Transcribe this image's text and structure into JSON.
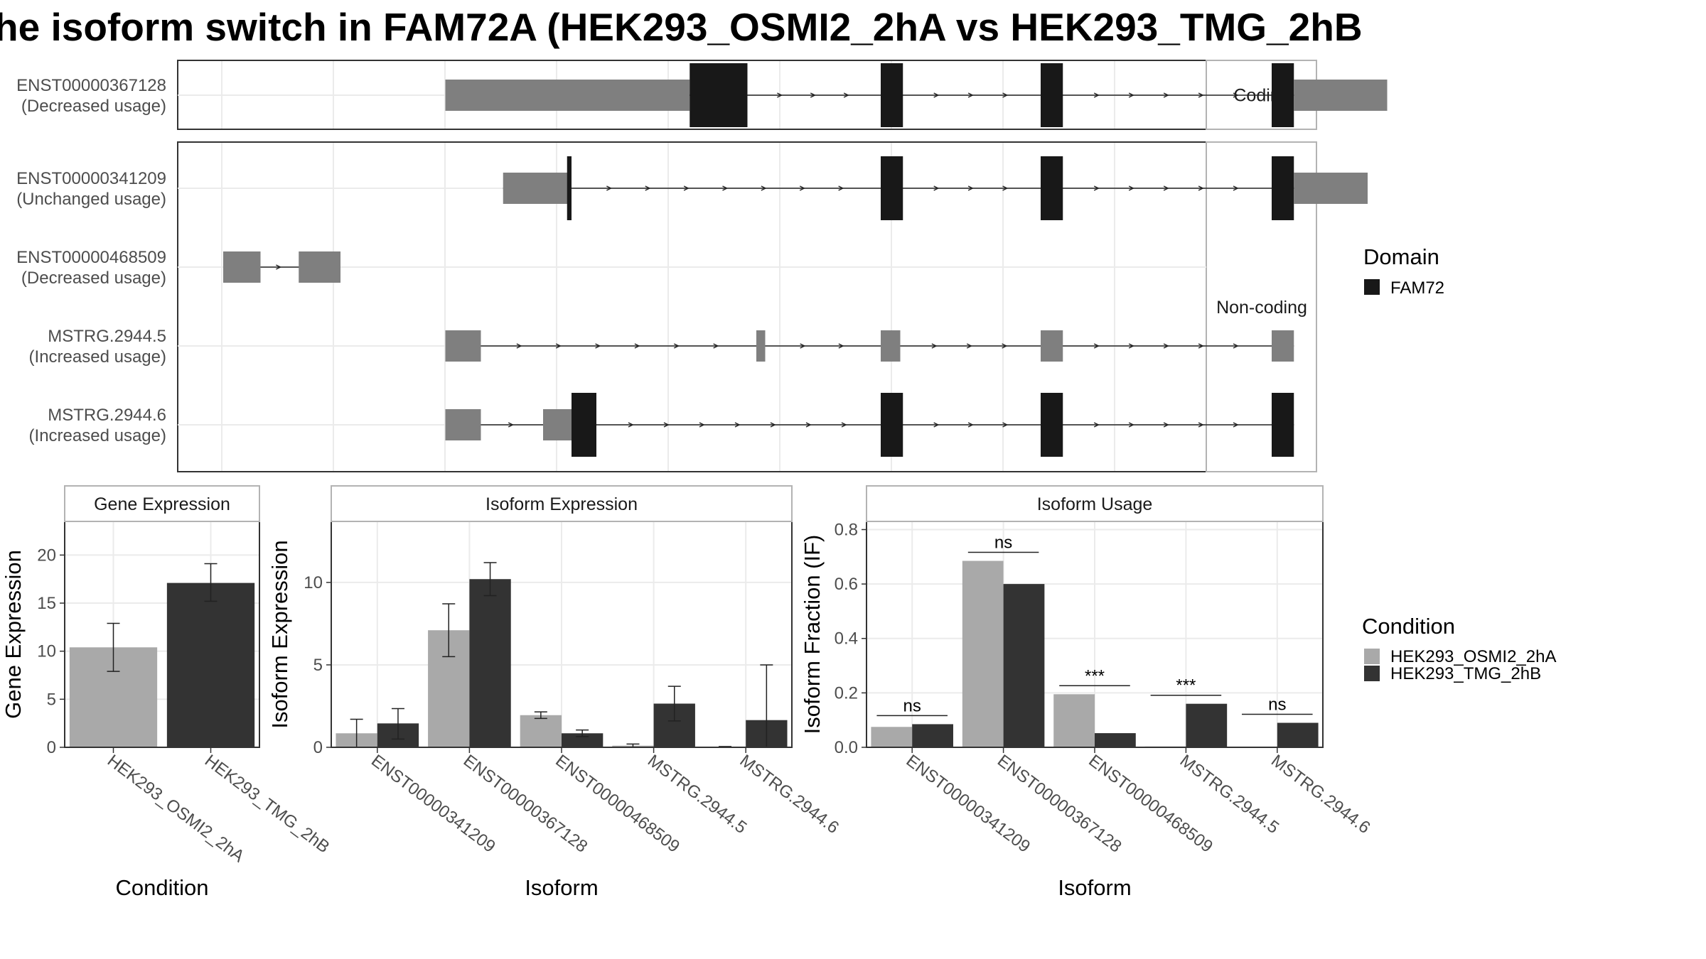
{
  "title": "he isoform switch in FAM72A (HEK293_OSMI2_2hA vs HEK293_TMG_2hB",
  "colors": {
    "domain": "#181818",
    "utr": "#7f7f7f",
    "cond1": "#a9a9a9",
    "cond2": "#333333",
    "grid": "#ebebeb",
    "strip_border": "#b3b3b3",
    "panel_border": "#333333"
  },
  "structure": {
    "facets": [
      "Coding",
      "Non-coding"
    ],
    "domain_legend": {
      "title": "Domain",
      "items": [
        "FAM72"
      ]
    },
    "transcripts": [
      {
        "id": "ENST00000367128",
        "usage": "(Decreased usage)",
        "facet": "Coding",
        "exons": [
          {
            "s": 0.25,
            "e": 0.525,
            "type": "utr"
          },
          {
            "s": 0.525,
            "e": 0.59,
            "type": "domain"
          },
          {
            "s": 0.74,
            "e": 0.765,
            "type": "domain"
          },
          {
            "s": 0.92,
            "e": 0.945,
            "type": "domain"
          },
          {
            "s": 1.18,
            "e": 1.205,
            "type": "domain"
          },
          {
            "s": 1.205,
            "e": 1.31,
            "type": "utr"
          }
        ]
      },
      {
        "id": "ENST00000341209",
        "usage": "(Unchanged usage)",
        "facet": "Non-coding",
        "exons": [
          {
            "s": 0.315,
            "e": 0.37,
            "type": "utr"
          },
          {
            "s": 0.37,
            "e": 0.392,
            "type": "utr"
          },
          {
            "s": 0.387,
            "e": 0.392,
            "type": "domain"
          },
          {
            "s": 0.74,
            "e": 0.765,
            "type": "domain"
          },
          {
            "s": 0.92,
            "e": 0.945,
            "type": "domain"
          },
          {
            "s": 1.18,
            "e": 1.205,
            "type": "domain"
          },
          {
            "s": 1.205,
            "e": 1.288,
            "type": "utr"
          }
        ]
      },
      {
        "id": "ENST00000468509",
        "usage": "(Decreased usage)",
        "facet": "Non-coding",
        "exons": [
          {
            "s": 0.0,
            "e": 0.042,
            "type": "utr"
          },
          {
            "s": 0.085,
            "e": 0.132,
            "type": "utr"
          }
        ]
      },
      {
        "id": "MSTRG.2944.5",
        "usage": "(Increased usage)",
        "facet": "Non-coding",
        "exons": [
          {
            "s": 0.25,
            "e": 0.29,
            "type": "utr"
          },
          {
            "s": 0.6,
            "e": 0.61,
            "type": "utr"
          },
          {
            "s": 0.74,
            "e": 0.762,
            "type": "utr"
          },
          {
            "s": 0.92,
            "e": 0.945,
            "type": "utr"
          },
          {
            "s": 1.18,
            "e": 1.205,
            "type": "utr"
          }
        ]
      },
      {
        "id": "MSTRG.2944.6",
        "usage": "(Increased usage)",
        "facet": "Non-coding",
        "exons": [
          {
            "s": 0.25,
            "e": 0.29,
            "type": "utr"
          },
          {
            "s": 0.36,
            "e": 0.392,
            "type": "utr"
          },
          {
            "s": 0.392,
            "e": 0.42,
            "type": "domain"
          },
          {
            "s": 0.74,
            "e": 0.765,
            "type": "domain"
          },
          {
            "s": 0.92,
            "e": 0.945,
            "type": "domain"
          },
          {
            "s": 1.18,
            "e": 1.205,
            "type": "domain"
          }
        ]
      }
    ]
  },
  "condition_legend": {
    "title": "Condition",
    "items": [
      "HEK293_OSMI2_2hA",
      "HEK293_TMG_2hB"
    ]
  },
  "chart_data": [
    {
      "type": "bar",
      "title": "Gene Expression",
      "xlabel": "Condition",
      "ylabel": "Gene Expression",
      "ylim": [
        0,
        23.5
      ],
      "yticks": [
        0,
        5,
        10,
        15,
        20
      ],
      "categories": [
        "HEK293_OSMI2_2hA",
        "HEK293_TMG_2hB"
      ],
      "values": [
        10.4,
        17.1
      ],
      "errors": [
        [
          7.9,
          12.9
        ],
        [
          15.2,
          19.1
        ]
      ]
    },
    {
      "type": "bar",
      "title": "Isoform Expression",
      "xlabel": "Isoform",
      "ylabel": "Isoform Expression",
      "ylim": [
        0,
        13.7
      ],
      "yticks": [
        0,
        5,
        10
      ],
      "categories": [
        "ENST00000341209",
        "ENST00000367128",
        "ENST00000468509",
        "MSTRG.2944.5",
        "MSTRG.2944.6"
      ],
      "series": [
        {
          "name": "HEK293_OSMI2_2hA",
          "values": [
            0.85,
            7.1,
            1.95,
            0.1,
            0.02
          ],
          "errors": [
            [
              0.0,
              1.7
            ],
            [
              5.5,
              8.7
            ],
            [
              1.75,
              2.15
            ],
            [
              0.0,
              0.2
            ],
            [
              0.0,
              0.05
            ]
          ]
        },
        {
          "name": "HEK293_TMG_2hB",
          "values": [
            1.45,
            10.2,
            0.85,
            2.65,
            1.65
          ],
          "errors": [
            [
              0.5,
              2.35
            ],
            [
              9.2,
              11.2
            ],
            [
              0.65,
              1.05
            ],
            [
              1.6,
              3.7
            ],
            [
              0.0,
              5.0
            ]
          ]
        }
      ]
    },
    {
      "type": "bar",
      "title": "Isoform Usage",
      "xlabel": "Isoform",
      "ylabel": "Isoform Fraction (IF)",
      "ylim": [
        0,
        0.83
      ],
      "yticks": [
        "0.0",
        "0.2",
        "0.4",
        "0.6",
        "0.8"
      ],
      "categories": [
        "ENST00000341209",
        "ENST00000367128",
        "ENST00000468509",
        "MSTRG.2944.5",
        "MSTRG.2944.6"
      ],
      "series": [
        {
          "name": "HEK293_OSMI2_2hA",
          "values": [
            0.075,
            0.685,
            0.195,
            0.003,
            0.0
          ]
        },
        {
          "name": "HEK293_TMG_2hB",
          "values": [
            0.085,
            0.6,
            0.052,
            0.16,
            0.09
          ]
        }
      ],
      "significance": [
        "ns",
        "ns",
        "***",
        "***",
        "ns"
      ]
    }
  ]
}
